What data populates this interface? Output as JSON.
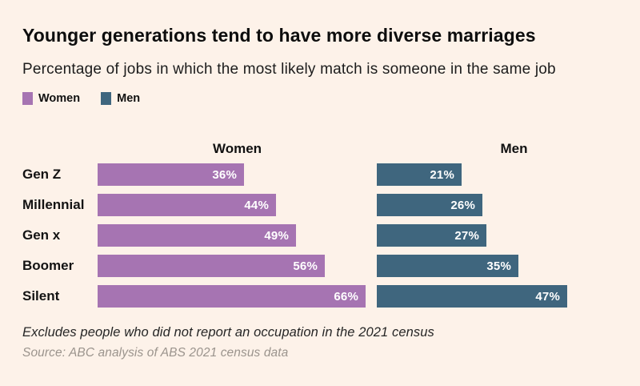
{
  "header": {
    "title": "Younger generations tend to have more diverse marriages",
    "subtitle": "Percentage of jobs in which the most likely match is someone in the same job"
  },
  "legend": {
    "women_label": "Women",
    "men_label": "Men"
  },
  "column_headers": {
    "women": "Women",
    "men": "Men"
  },
  "chart_data": {
    "type": "bar",
    "orientation": "horizontal",
    "title": "Younger generations tend to have more diverse marriages",
    "subtitle": "Percentage of jobs in which the most likely match is someone in the same job",
    "categories": [
      "Gen Z",
      "Millennial",
      "Gen x",
      "Boomer",
      "Silent"
    ],
    "series": [
      {
        "name": "Women",
        "values": [
          36,
          44,
          49,
          56,
          66
        ],
        "color": "#a674b2"
      },
      {
        "name": "Men",
        "values": [
          21,
          26,
          27,
          35,
          47
        ],
        "color": "#3f667e"
      }
    ],
    "value_suffix": "%",
    "value_labels": "inside-end",
    "xlim": [
      0,
      70
    ],
    "grid": false,
    "legend_position": "top-left"
  },
  "footnote": "Excludes people who did not report an occupation in the 2021 census",
  "source": "Source: ABC analysis of ABS 2021 census data",
  "colors": {
    "background": "#fdf2e9",
    "women": "#a674b2",
    "men": "#3f667e",
    "title_text": "#0d0d0d",
    "body_text": "#1c1c1c",
    "bar_label_text": "#ffffff",
    "source_text": "#9b948d"
  }
}
